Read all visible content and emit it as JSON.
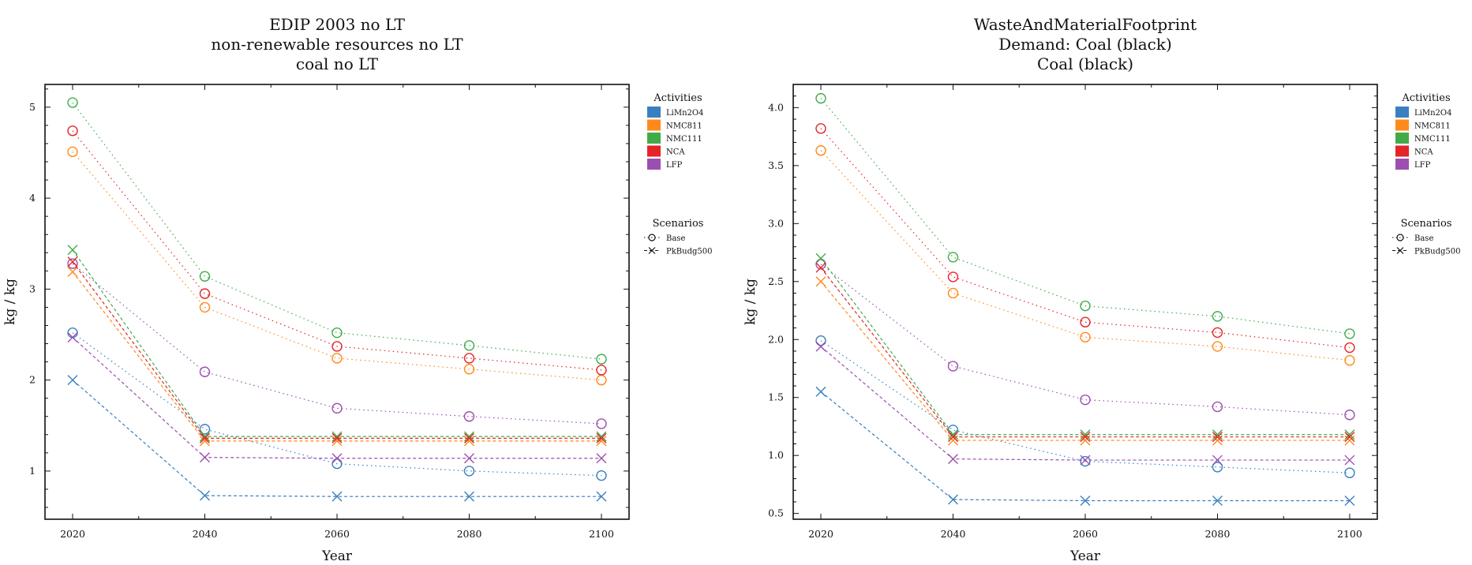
{
  "palette": {
    "LiMn2O4": "#3a7fc0",
    "NMC811": "#ff8a1a",
    "NMC111": "#41ab4a",
    "NCA": "#e3252a",
    "LFP": "#9c4fb0"
  },
  "chart_data": [
    {
      "type": "line",
      "title": [
        "EDIP 2003 no LT",
        "non-renewable resources no LT",
        "coal no LT"
      ],
      "xlabel": "Year",
      "ylabel": "kg / kg",
      "x": [
        2020,
        2040,
        2060,
        2080,
        2100
      ],
      "x_ticks": [
        "2020",
        "2040",
        "2060",
        "2080",
        "2100"
      ],
      "ylim": [
        0.47,
        5.25
      ],
      "y_ticks": [
        "1",
        "2",
        "3",
        "4",
        "5"
      ],
      "y_tick_values": [
        1,
        2,
        3,
        4,
        5
      ],
      "legend": {
        "activities_title": "Activities",
        "activities": [
          "LiMn2O4",
          "NMC811",
          "NMC111",
          "NCA",
          "LFP"
        ],
        "scenarios_title": "Scenarios",
        "scenarios": [
          "Base",
          "PkBudg500"
        ],
        "placement": "right"
      },
      "series": [
        {
          "activity": "LiMn2O4",
          "scenario": "Base",
          "values": [
            2.52,
            1.46,
            1.08,
            1.0,
            0.95
          ]
        },
        {
          "activity": "NMC811",
          "scenario": "Base",
          "values": [
            4.51,
            2.8,
            2.24,
            2.12,
            2.0
          ]
        },
        {
          "activity": "NMC111",
          "scenario": "Base",
          "values": [
            5.05,
            3.14,
            2.52,
            2.38,
            2.23
          ]
        },
        {
          "activity": "NCA",
          "scenario": "Base",
          "values": [
            4.74,
            2.95,
            2.37,
            2.24,
            2.11
          ]
        },
        {
          "activity": "LFP",
          "scenario": "Base",
          "values": [
            3.28,
            2.09,
            1.69,
            1.6,
            1.52
          ]
        },
        {
          "activity": "LiMn2O4",
          "scenario": "PkBudg500",
          "values": [
            2.0,
            0.73,
            0.72,
            0.72,
            0.72
          ]
        },
        {
          "activity": "NMC811",
          "scenario": "PkBudg500",
          "values": [
            3.19,
            1.33,
            1.33,
            1.33,
            1.33
          ]
        },
        {
          "activity": "NMC111",
          "scenario": "PkBudg500",
          "values": [
            3.43,
            1.38,
            1.38,
            1.38,
            1.38
          ]
        },
        {
          "activity": "NCA",
          "scenario": "PkBudg500",
          "values": [
            3.3,
            1.36,
            1.36,
            1.36,
            1.36
          ]
        },
        {
          "activity": "LFP",
          "scenario": "PkBudg500",
          "values": [
            2.47,
            1.15,
            1.14,
            1.14,
            1.14
          ]
        }
      ]
    },
    {
      "type": "line",
      "title": [
        "WasteAndMaterialFootprint",
        "Demand: Coal (black)",
        "Coal (black)"
      ],
      "xlabel": "Year",
      "ylabel": "kg / kg",
      "x": [
        2020,
        2040,
        2060,
        2080,
        2100
      ],
      "x_ticks": [
        "2020",
        "2040",
        "2060",
        "2080",
        "2100"
      ],
      "ylim": [
        0.45,
        4.2
      ],
      "y_ticks": [
        "0.5",
        "1.0",
        "1.5",
        "2.0",
        "2.5",
        "3.0",
        "3.5",
        "4.0"
      ],
      "y_tick_values": [
        0.5,
        1.0,
        1.5,
        2.0,
        2.5,
        3.0,
        3.5,
        4.0
      ],
      "legend": {
        "activities_title": "Activities",
        "activities": [
          "LiMn2O4",
          "NMC811",
          "NMC111",
          "NCA",
          "LFP"
        ],
        "scenarios_title": "Scenarios",
        "scenarios": [
          "Base",
          "PkBudg500"
        ],
        "placement": "right"
      },
      "series": [
        {
          "activity": "LiMn2O4",
          "scenario": "Base",
          "values": [
            1.99,
            1.22,
            0.95,
            0.9,
            0.85
          ]
        },
        {
          "activity": "NMC811",
          "scenario": "Base",
          "values": [
            3.63,
            2.4,
            2.02,
            1.94,
            1.82
          ]
        },
        {
          "activity": "NMC111",
          "scenario": "Base",
          "values": [
            4.08,
            2.71,
            2.29,
            2.2,
            2.05
          ]
        },
        {
          "activity": "NCA",
          "scenario": "Base",
          "values": [
            3.82,
            2.54,
            2.15,
            2.06,
            1.93
          ]
        },
        {
          "activity": "LFP",
          "scenario": "Base",
          "values": [
            2.65,
            1.77,
            1.48,
            1.42,
            1.35
          ]
        },
        {
          "activity": "LiMn2O4",
          "scenario": "PkBudg500",
          "values": [
            1.55,
            0.62,
            0.61,
            0.61,
            0.61
          ]
        },
        {
          "activity": "NMC811",
          "scenario": "PkBudg500",
          "values": [
            2.5,
            1.13,
            1.13,
            1.13,
            1.13
          ]
        },
        {
          "activity": "NMC111",
          "scenario": "PkBudg500",
          "values": [
            2.7,
            1.18,
            1.18,
            1.18,
            1.18
          ]
        },
        {
          "activity": "NCA",
          "scenario": "PkBudg500",
          "values": [
            2.62,
            1.16,
            1.16,
            1.16,
            1.16
          ]
        },
        {
          "activity": "LFP",
          "scenario": "PkBudg500",
          "values": [
            1.94,
            0.97,
            0.96,
            0.96,
            0.96
          ]
        }
      ]
    }
  ]
}
